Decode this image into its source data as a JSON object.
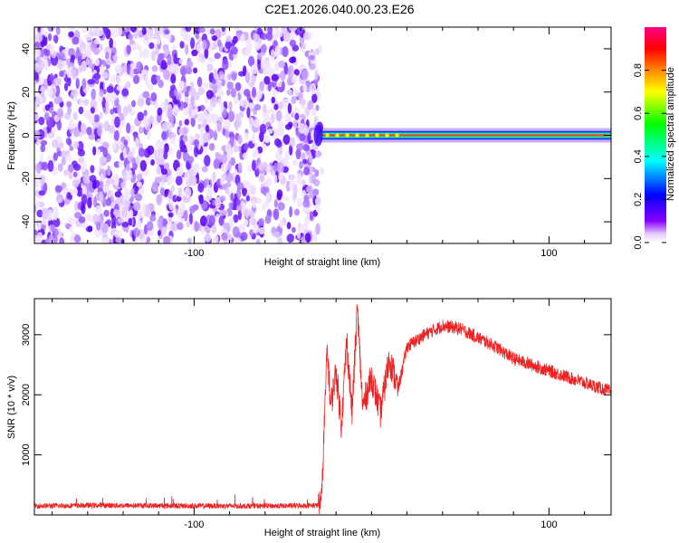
{
  "figure_title": "C2E1.2026.040.00.23.E26",
  "chart_data": [
    {
      "type": "heatmap",
      "xlabel": "Height of straight line (km)",
      "ylabel": "Frequency (Hz)",
      "xlim": [
        -190,
        135
      ],
      "ylim": [
        -50,
        50
      ],
      "xticks": [
        -100,
        100
      ],
      "yticks": [
        -40,
        -20,
        0,
        20,
        40
      ],
      "noise_region_x": [
        -190,
        -30
      ],
      "onset_x": -29,
      "signal_band_hz": [
        -2,
        2
      ],
      "colorbar": {
        "label": "Normalized spectral amplitude",
        "range": [
          0,
          1
        ],
        "ticks": [
          0.0,
          0.2,
          0.4,
          0.6,
          0.8
        ],
        "colors": [
          "#ffffff",
          "#e6ccff",
          "#8800ff",
          "#0000ff",
          "#00ffff",
          "#00ff00",
          "#ffff00",
          "#ff8800",
          "#ff0000",
          "#ff0088"
        ]
      }
    },
    {
      "type": "line",
      "xlabel": "Height of straight line (km)",
      "ylabel": "SNR (10 * v/v)",
      "xlim": [
        -190,
        135
      ],
      "ylim": [
        0,
        3600
      ],
      "xticks": [
        -100,
        100
      ],
      "yticks": [
        1000,
        2000,
        3000
      ],
      "color": "#ee2222",
      "x": [
        -190,
        -150,
        -100,
        -50,
        -30,
        -28,
        -27,
        -25,
        -23,
        -20,
        -17,
        -14,
        -11,
        -8,
        -5,
        0,
        5,
        10,
        15,
        20,
        30,
        40,
        50,
        60,
        70,
        80,
        90,
        100,
        110,
        120,
        135
      ],
      "y": [
        150,
        160,
        150,
        150,
        160,
        300,
        1200,
        2800,
        1800,
        2400,
        1500,
        2900,
        1700,
        3450,
        1800,
        2300,
        1700,
        2600,
        2100,
        2800,
        3000,
        3150,
        3100,
        2950,
        2800,
        2600,
        2500,
        2400,
        2300,
        2200,
        2050
      ]
    }
  ]
}
